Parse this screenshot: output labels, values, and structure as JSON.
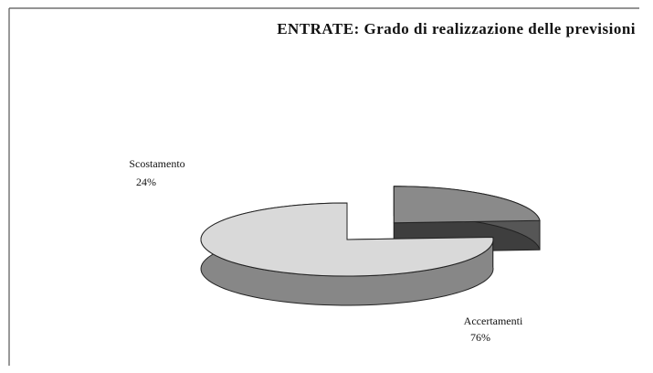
{
  "chart_data": {
    "type": "pie",
    "title": "ENTRATE: Grado di realizzazione delle previsioni",
    "categories": [
      "Scostamento",
      "Accertamenti"
    ],
    "values": [
      24,
      76
    ],
    "value_labels": [
      "24%",
      "76%"
    ],
    "colors": [
      "#8a8a8a",
      "#d9d9d9"
    ],
    "explode": [
      1,
      0
    ]
  }
}
